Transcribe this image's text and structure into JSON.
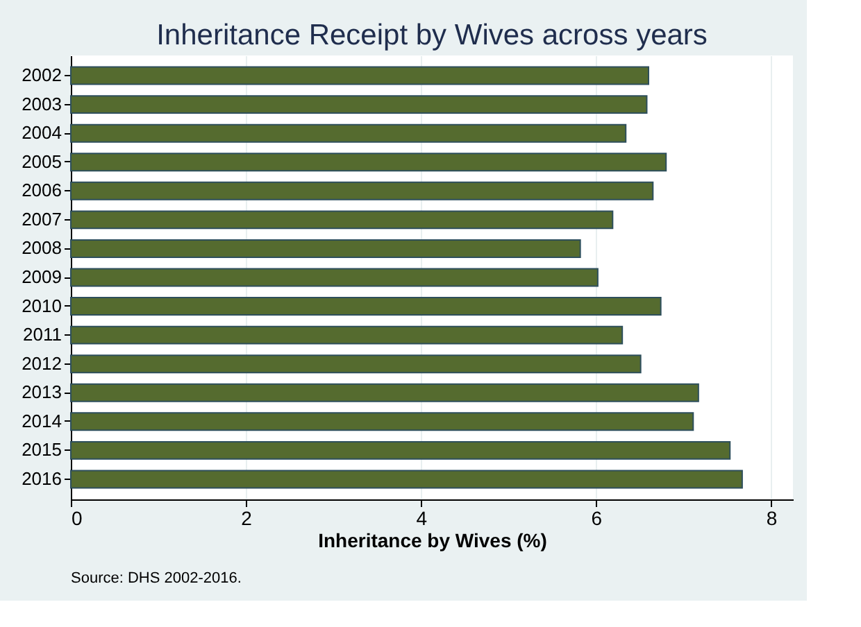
{
  "chart_data": {
    "type": "bar",
    "orientation": "horizontal",
    "title": "Inheritance Receipt by Wives across years",
    "xlabel": "Inheritance by Wives (%)",
    "categories": [
      "2002",
      "2003",
      "2004",
      "2005",
      "2006",
      "2007",
      "2008",
      "2009",
      "2010",
      "2011",
      "2012",
      "2013",
      "2014",
      "2015",
      "2016"
    ],
    "values": [
      6.6,
      6.58,
      6.34,
      6.8,
      6.65,
      6.19,
      5.82,
      6.02,
      6.74,
      6.3,
      6.51,
      7.17,
      7.11,
      7.53,
      7.67
    ],
    "color": "#556b2f",
    "xlim": [
      0,
      8.25
    ],
    "xticks": [
      0,
      2,
      4,
      6,
      8
    ],
    "grid": "x",
    "annotations": [
      "Source: DHS 2002-2016."
    ]
  }
}
